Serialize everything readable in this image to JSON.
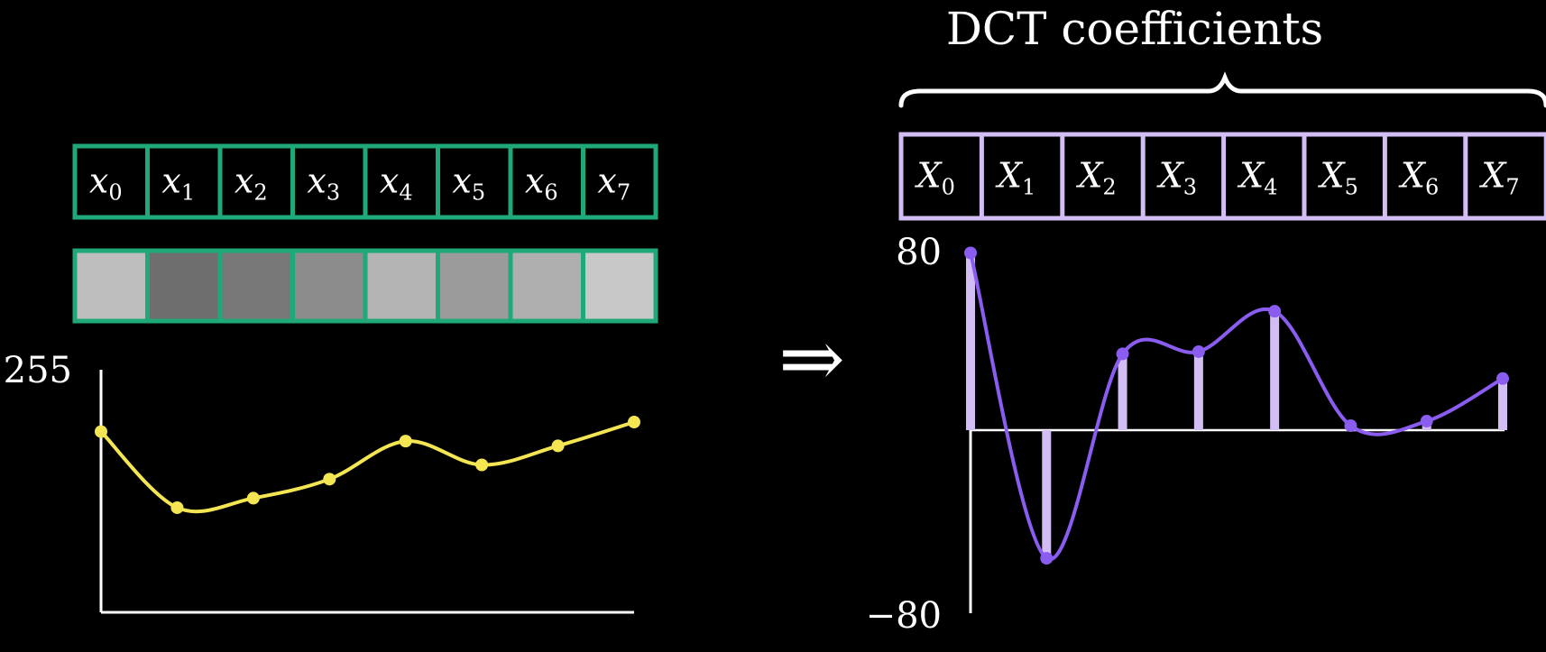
{
  "title": "DCT coefficients",
  "arrow_symbol": "⇒",
  "input": {
    "cells": [
      {
        "base": "x",
        "sub": "0"
      },
      {
        "base": "x",
        "sub": "1"
      },
      {
        "base": "x",
        "sub": "2"
      },
      {
        "base": "x",
        "sub": "3"
      },
      {
        "base": "x",
        "sub": "4"
      },
      {
        "base": "x",
        "sub": "5"
      },
      {
        "base": "x",
        "sub": "6"
      },
      {
        "base": "x",
        "sub": "7"
      }
    ],
    "pixel_values": [
      190,
      110,
      120,
      140,
      180,
      155,
      175,
      200
    ],
    "border_color": "#1fa878",
    "y_max_label": "255",
    "curve_color": "#f4e653"
  },
  "output": {
    "cells": [
      {
        "base": "X",
        "sub": "0"
      },
      {
        "base": "X",
        "sub": "1"
      },
      {
        "base": "X",
        "sub": "2"
      },
      {
        "base": "X",
        "sub": "3"
      },
      {
        "base": "X",
        "sub": "4"
      },
      {
        "base": "X",
        "sub": "5"
      },
      {
        "base": "X",
        "sub": "6"
      },
      {
        "base": "X",
        "sub": "7"
      }
    ],
    "coefficients": [
      79,
      -56,
      34,
      35,
      53,
      2,
      4,
      23
    ],
    "border_color": "#d2bdf5",
    "bar_color": "#d2bdf5",
    "curve_color": "#8a5cf0",
    "y_max_label": "80",
    "y_min_label": "−80",
    "y_range": [
      -80,
      80
    ]
  }
}
